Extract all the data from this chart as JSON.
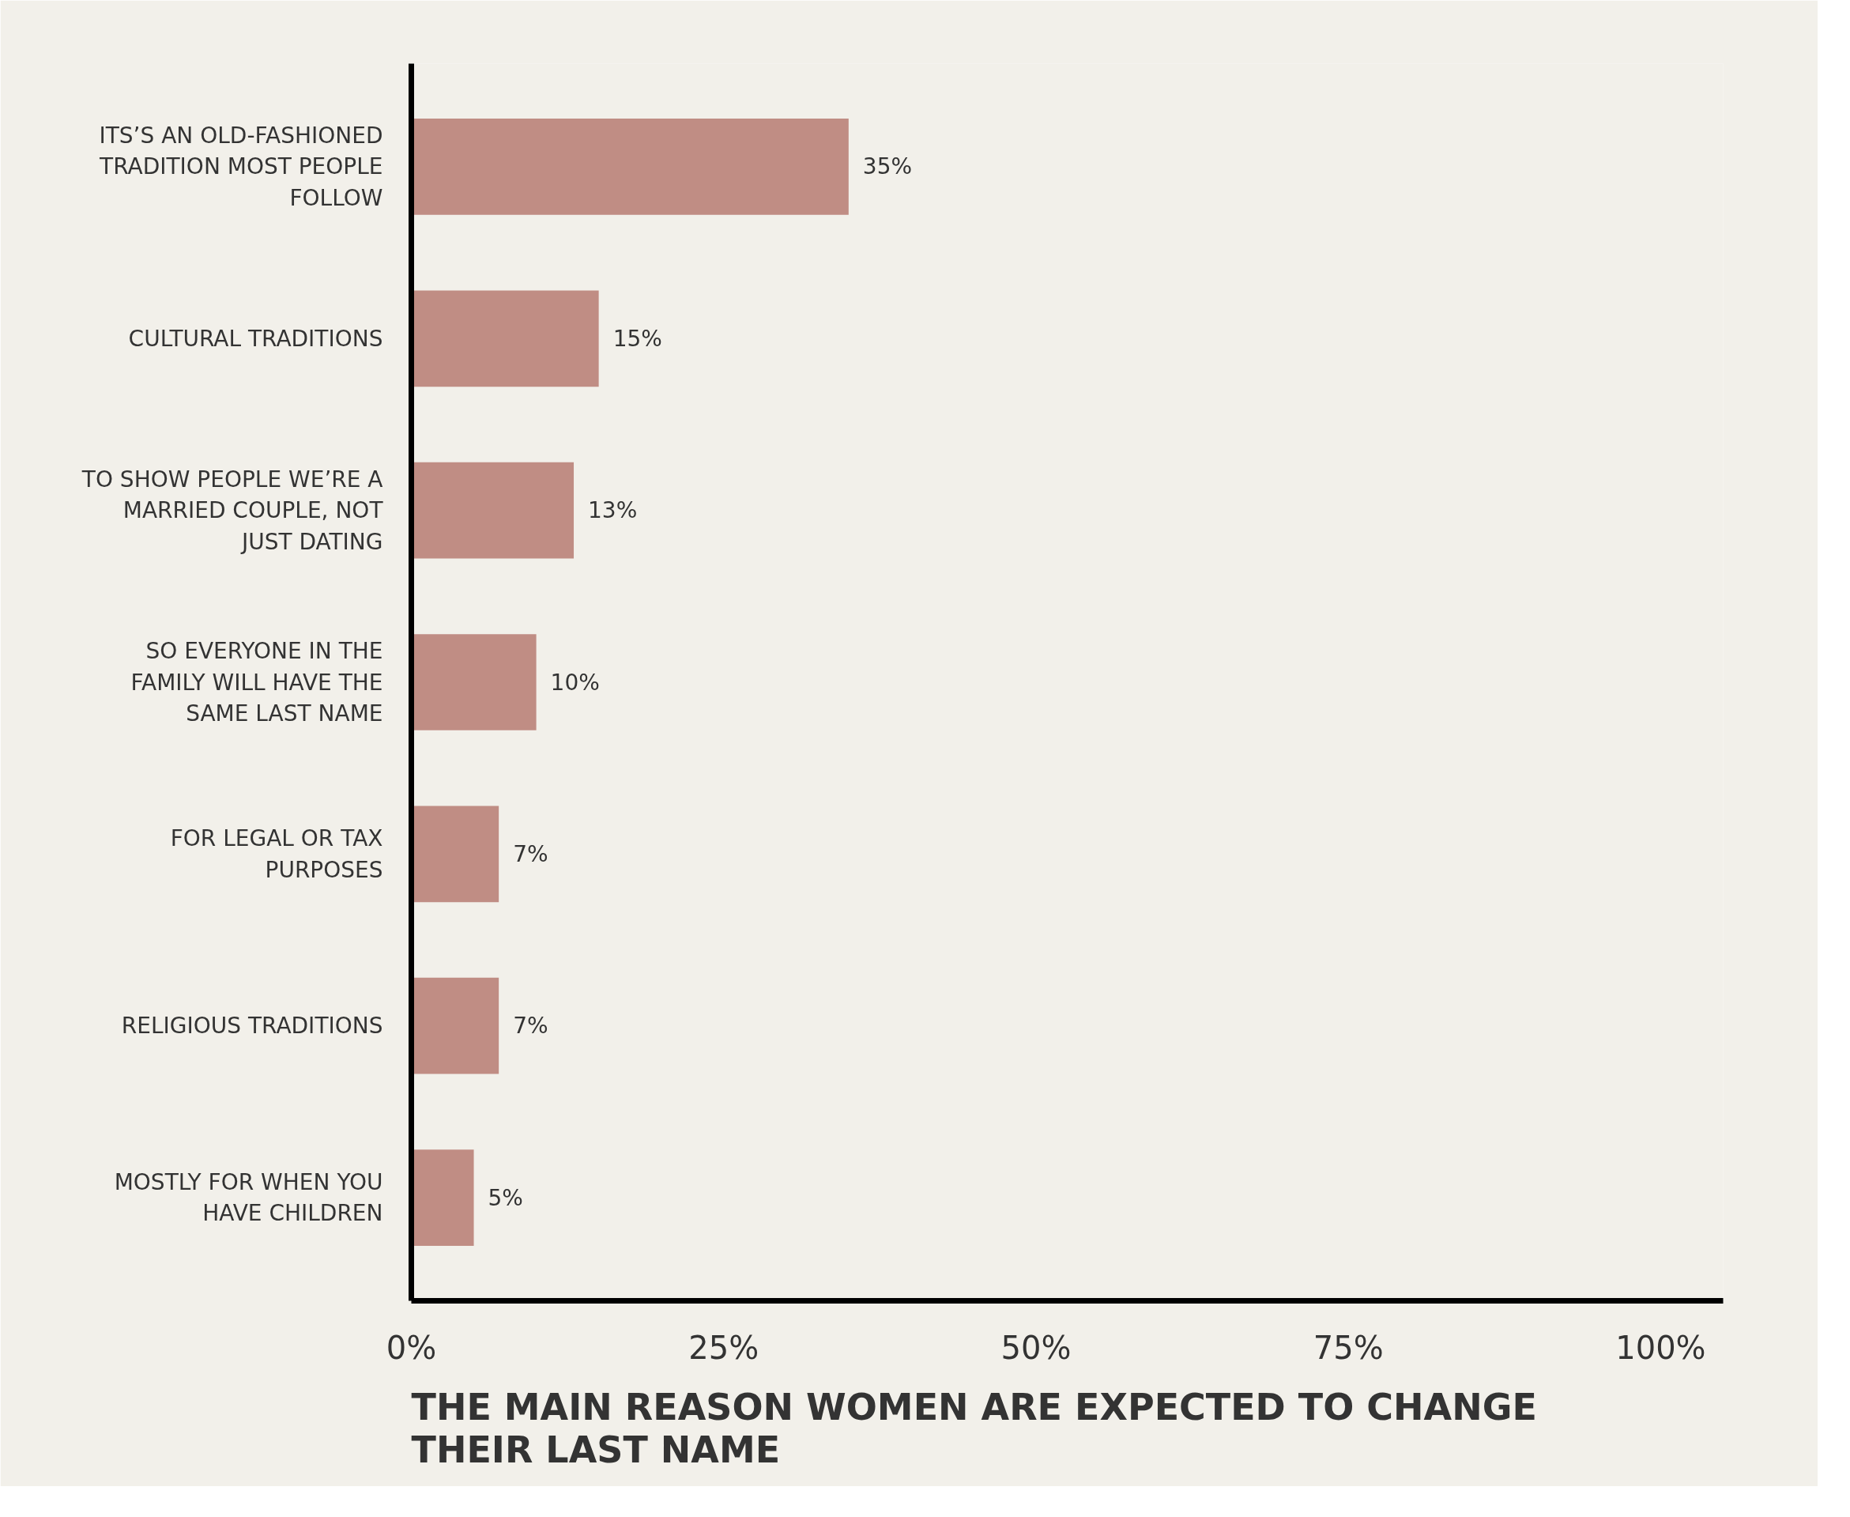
{
  "chart_data": {
    "type": "bar",
    "orientation": "horizontal",
    "title": "THE MAIN REASON WOMEN ARE EXPECTED TO CHANGE THEIR LAST NAME",
    "categories": [
      "ITS’S AN OLD-FASHIONED TRADITION MOST PEOPLE FOLLOW",
      "CULTURAL TRADITIONS",
      "TO SHOW PEOPLE WE’RE A MARRIED COUPLE, NOT JUST DATING",
      "SO EVERYONE IN THE FAMILY WILL HAVE THE SAME LAST NAME",
      "FOR LEGAL OR TAX PURPOSES",
      "RELIGIOUS TRADITIONS",
      "MOSTLY FOR WHEN YOU HAVE CHILDREN"
    ],
    "values": [
      35,
      15,
      13,
      10,
      7,
      7,
      5
    ],
    "value_labels": [
      "35%",
      "15%",
      "13%",
      "10%",
      "7%",
      "7%",
      "5%"
    ],
    "color": "#c08d84",
    "xlim": [
      0,
      105
    ],
    "xticks": [
      {
        "value": 0,
        "label": "0%"
      },
      {
        "value": 25,
        "label": "25%"
      },
      {
        "value": 50,
        "label": "50%"
      },
      {
        "value": 75,
        "label": "75%"
      },
      {
        "value": 100,
        "label": "100%"
      }
    ],
    "grid": false
  }
}
